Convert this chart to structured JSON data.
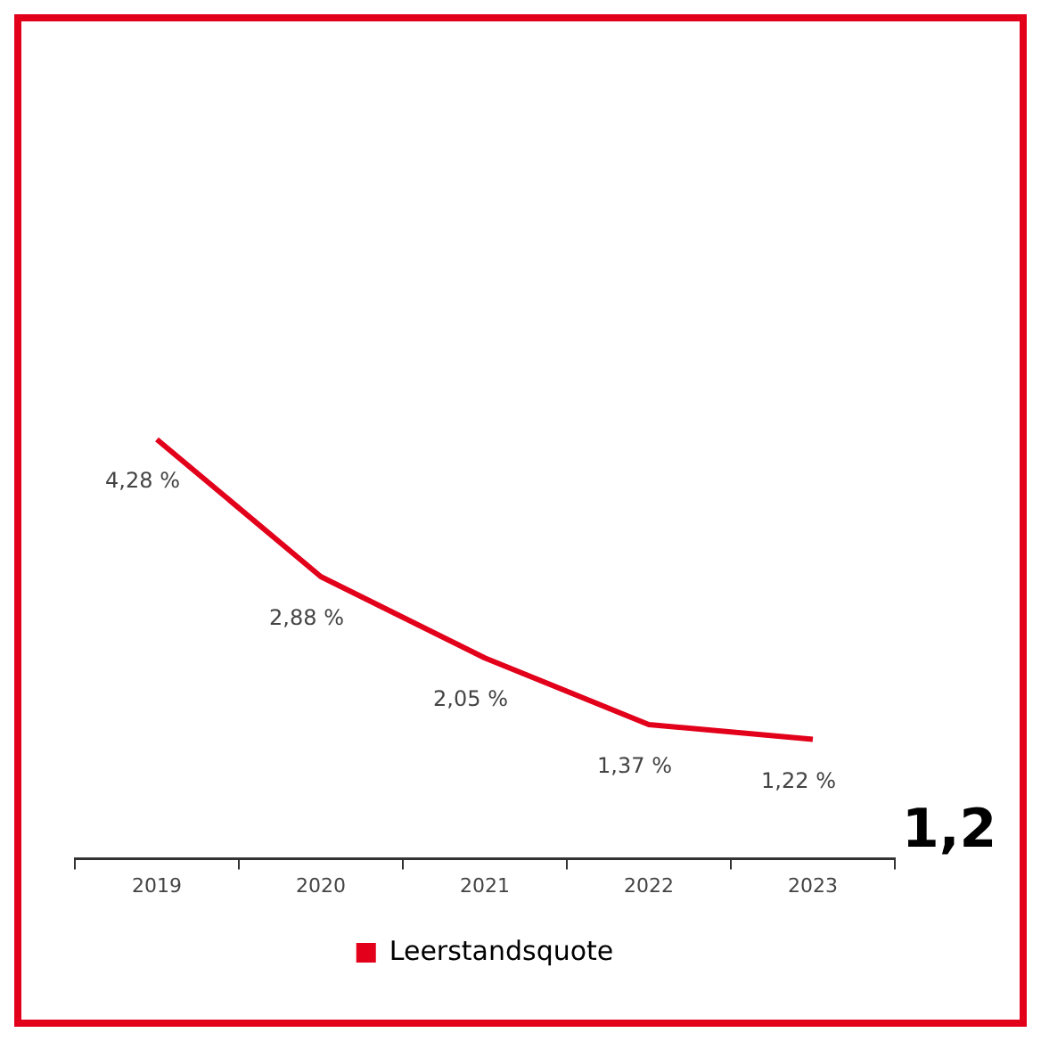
{
  "chart_data": {
    "type": "line",
    "categories": [
      "2019",
      "2020",
      "2021",
      "2022",
      "2023"
    ],
    "series": [
      {
        "name": "Leerstandsquote",
        "color": "#e2001a",
        "values": [
          4.28,
          2.88,
          2.05,
          1.37,
          1.22
        ],
        "value_labels": [
          "4,28 %",
          "2,88 %",
          "2,05 %",
          "1,37 %",
          "1,22 %"
        ]
      }
    ],
    "legend": "bottom",
    "grid": false,
    "marker": "none",
    "line_style": "solid",
    "annotations": [
      "1,2"
    ]
  }
}
